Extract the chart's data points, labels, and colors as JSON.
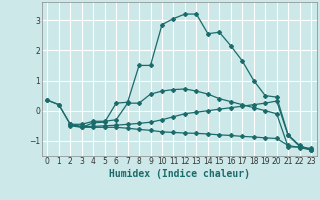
{
  "xlabel": "Humidex (Indice chaleur)",
  "ylabel": "",
  "bg_color": "#cce8e8",
  "line_color": "#1a6b6b",
  "grid_color": "#ffffff",
  "xlim": [
    -0.5,
    23.5
  ],
  "ylim": [
    -1.5,
    3.6
  ],
  "yticks": [
    -1,
    0,
    1,
    2,
    3
  ],
  "xticks": [
    0,
    1,
    2,
    3,
    4,
    5,
    6,
    7,
    8,
    9,
    10,
    11,
    12,
    13,
    14,
    15,
    16,
    17,
    18,
    19,
    20,
    21,
    22,
    23
  ],
  "lines": [
    {
      "x": [
        0,
        1,
        2,
        3,
        4,
        5,
        6,
        7,
        8,
        9,
        10,
        11,
        12,
        13,
        14,
        15,
        16,
        17,
        18,
        19,
        20,
        21,
        22,
        23
      ],
      "y": [
        0.35,
        0.2,
        -0.45,
        -0.55,
        -0.4,
        -0.38,
        0.25,
        0.28,
        1.5,
        1.5,
        2.85,
        3.05,
        3.2,
        3.2,
        2.55,
        2.6,
        2.15,
        1.65,
        1.0,
        0.5,
        0.45,
        -0.8,
        -1.15,
        -1.3
      ]
    },
    {
      "x": [
        0,
        1,
        2,
        3,
        4,
        5,
        6,
        7,
        8,
        9,
        10,
        11,
        12,
        13,
        14,
        15,
        16,
        17,
        18,
        19,
        20,
        21,
        22,
        23
      ],
      "y": [
        0.35,
        0.2,
        -0.45,
        -0.45,
        -0.35,
        -0.35,
        -0.3,
        0.25,
        0.25,
        0.55,
        0.65,
        0.7,
        0.72,
        0.65,
        0.55,
        0.4,
        0.3,
        0.2,
        0.1,
        0.0,
        -0.1,
        -1.2,
        -1.2,
        -1.25
      ]
    },
    {
      "x": [
        2,
        3,
        4,
        5,
        6,
        7,
        8,
        9,
        10,
        11,
        12,
        13,
        14,
        15,
        16,
        17,
        18,
        19,
        20,
        21,
        22,
        23
      ],
      "y": [
        -0.45,
        -0.52,
        -0.52,
        -0.5,
        -0.48,
        -0.45,
        -0.42,
        -0.38,
        -0.3,
        -0.2,
        -0.1,
        -0.05,
        0.0,
        0.05,
        0.1,
        0.15,
        0.2,
        0.25,
        0.32,
        -0.82,
        -1.18,
        -1.3
      ]
    },
    {
      "x": [
        2,
        3,
        4,
        5,
        6,
        7,
        8,
        9,
        10,
        11,
        12,
        13,
        14,
        15,
        16,
        17,
        18,
        19,
        20,
        21,
        22,
        23
      ],
      "y": [
        -0.5,
        -0.55,
        -0.55,
        -0.55,
        -0.55,
        -0.58,
        -0.62,
        -0.65,
        -0.7,
        -0.72,
        -0.74,
        -0.75,
        -0.77,
        -0.8,
        -0.82,
        -0.85,
        -0.87,
        -0.9,
        -0.92,
        -1.15,
        -1.22,
        -1.3
      ]
    }
  ]
}
